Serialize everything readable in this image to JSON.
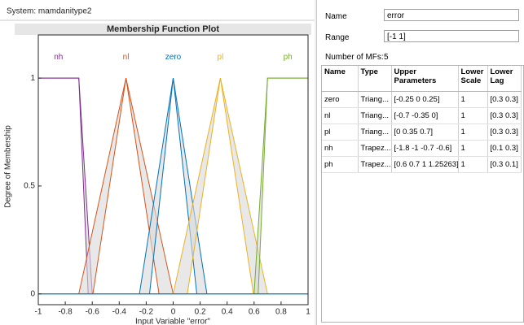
{
  "system_label": "System: mamdanitype2",
  "properties": {
    "name_label": "Name",
    "name_value": "error",
    "range_label": "Range",
    "range_value": "[-1 1]",
    "num_mfs_label": "Number of MFs:",
    "num_mfs_value": 5
  },
  "table": {
    "columns": [
      "Name",
      "Type",
      "Upper Parameters",
      "Lower Scale",
      "Lower Lag"
    ],
    "rows": [
      [
        "zero",
        "Triang...",
        "[-0.25 0 0.25]",
        "1",
        "[0.3 0.3]"
      ],
      [
        "nl",
        "Triang...",
        "[-0.7 -0.35 0]",
        "1",
        "[0.3 0.3]"
      ],
      [
        "pl",
        "Triang...",
        "[0 0.35 0.7]",
        "1",
        "[0.3 0.3]"
      ],
      [
        "nh",
        "Trapez...",
        "[-1.8 -1 -0.7 -0.6]",
        "1",
        "[0.1 0.3]"
      ],
      [
        "ph",
        "Trapez...",
        "[0.6 0.7 1 1.25263]",
        "1",
        "[0.3 0.1]"
      ]
    ]
  },
  "chart_data": {
    "type": "line",
    "title": "Membership Function Plot",
    "xlabel": "Input Variable \"error\"",
    "ylabel": "Degree of Membership",
    "xlim": [
      -1,
      1
    ],
    "ylim": [
      -0.05,
      1.2
    ],
    "xticks": [
      -1,
      -0.8,
      -0.6,
      -0.4,
      -0.2,
      0,
      0.2,
      0.4,
      0.6,
      0.8,
      1
    ],
    "yticks": [
      0,
      0.5,
      1
    ],
    "series": [
      {
        "name": "nh",
        "color": "#7e2f8e",
        "upper": [
          -1.8,
          -1,
          -0.7,
          -0.6
        ],
        "lower_scale": 1,
        "lower_lag": [
          0.1,
          0.3
        ]
      },
      {
        "name": "nl",
        "color": "#d95319",
        "upper": [
          -0.7,
          -0.35,
          0
        ],
        "lower_scale": 1,
        "lower_lag": [
          0.3,
          0.3
        ]
      },
      {
        "name": "zero",
        "color": "#0072bd",
        "upper": [
          -0.25,
          0,
          0.25
        ],
        "lower_scale": 1,
        "lower_lag": [
          0.3,
          0.3
        ]
      },
      {
        "name": "pl",
        "color": "#edb120",
        "upper": [
          0,
          0.35,
          0.7
        ],
        "lower_scale": 1,
        "lower_lag": [
          0.3,
          0.3
        ]
      },
      {
        "name": "ph",
        "color": "#77ac30",
        "upper": [
          0.6,
          0.7,
          1,
          1.25263
        ],
        "lower_scale": 1,
        "lower_lag": [
          0.3,
          0.1
        ]
      }
    ]
  }
}
